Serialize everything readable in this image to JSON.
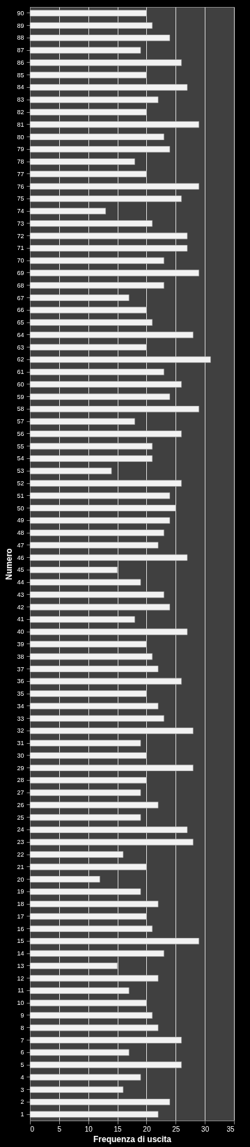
{
  "chart_data": {
    "type": "bar",
    "orientation": "horizontal",
    "xlabel": "Frequenza di uscita",
    "ylabel": "Numero",
    "categories": [
      "90",
      "89",
      "88",
      "87",
      "86",
      "85",
      "84",
      "83",
      "82",
      "81",
      "80",
      "79",
      "78",
      "77",
      "76",
      "75",
      "74",
      "73",
      "72",
      "71",
      "70",
      "69",
      "68",
      "67",
      "66",
      "65",
      "64",
      "63",
      "62",
      "61",
      "60",
      "59",
      "58",
      "57",
      "56",
      "55",
      "54",
      "53",
      "52",
      "51",
      "50",
      "49",
      "48",
      "47",
      "46",
      "45",
      "44",
      "43",
      "42",
      "41",
      "40",
      "39",
      "38",
      "37",
      "36",
      "35",
      "34",
      "33",
      "32",
      "31",
      "30",
      "29",
      "28",
      "27",
      "26",
      "25",
      "24",
      "23",
      "22",
      "21",
      "20",
      "19",
      "18",
      "17",
      "16",
      "15",
      "14",
      "13",
      "12",
      "11",
      "10",
      "9",
      "8",
      "7",
      "6",
      "5",
      "4",
      "3",
      "2",
      "1"
    ],
    "values": [
      20,
      21,
      24,
      19,
      26,
      20,
      27,
      22,
      20,
      29,
      23,
      24,
      18,
      20,
      29,
      26,
      13,
      21,
      27,
      27,
      23,
      29,
      23,
      17,
      20,
      21,
      28,
      20,
      31,
      23,
      26,
      24,
      29,
      18,
      26,
      21,
      21,
      14,
      26,
      24,
      25,
      24,
      23,
      22,
      27,
      15,
      19,
      23,
      24,
      18,
      27,
      20,
      21,
      22,
      26,
      20,
      22,
      23,
      28,
      19,
      20,
      28,
      20,
      19,
      22,
      19,
      27,
      28,
      16,
      20,
      12,
      19,
      22,
      20,
      21,
      29,
      23,
      15,
      22,
      17,
      20,
      21,
      22,
      26,
      17,
      26,
      19,
      16,
      24,
      22
    ],
    "color": "#f2f2f2",
    "xlim": [
      0,
      35
    ],
    "xticks": [
      0,
      5,
      10,
      15,
      20,
      25,
      30,
      35
    ],
    "grid": "x"
  }
}
